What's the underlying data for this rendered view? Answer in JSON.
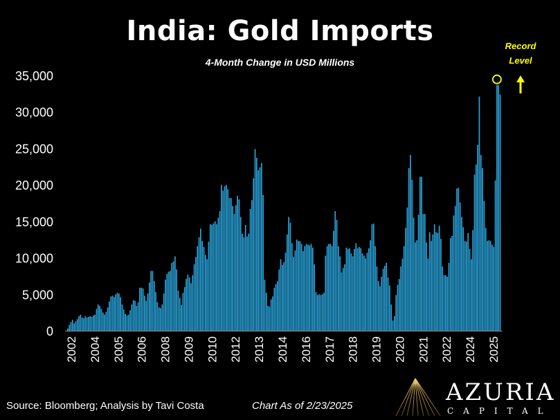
{
  "title": "India: Gold Imports",
  "subtitle": "4-Month Change in USD Millions",
  "annotation": {
    "line1": "Record",
    "line2": "Level",
    "color": "#ffff00"
  },
  "footer": {
    "source": "Source: Bloomberg; Analysis by Tavi Costa",
    "as_of": "Chart As of 2/23/2025"
  },
  "brand": {
    "name": "AZURIA",
    "sub": "CAPITAL",
    "mark_icon": "azuria-mountain-logo"
  },
  "colors": {
    "bar": "#2aa6de",
    "background": "#000000",
    "text": "#ffffff",
    "highlight": "#ffff00"
  },
  "chart_data": {
    "type": "bar",
    "title": "India: Gold Imports",
    "subtitle": "4-Month Change in USD Millions",
    "ylim": [
      0,
      35000
    ],
    "y_ticks": [
      0,
      5000,
      10000,
      15000,
      20000,
      25000,
      30000,
      35000
    ],
    "y_tick_labels": [
      "0",
      "5,000",
      "10,000",
      "15,000",
      "20,000",
      "25,000",
      "30,000",
      "35,000"
    ],
    "x_tick_labels": [
      "2002",
      "2004",
      "2005",
      "2006",
      "2008",
      "2009",
      "2010",
      "2012",
      "2013",
      "2014",
      "2016",
      "2017",
      "2018",
      "2019",
      "2020",
      "2021",
      "2022",
      "2024",
      "2025"
    ],
    "grid": false,
    "legend": "none",
    "values": [
      300,
      800,
      1200,
      1500,
      1000,
      1300,
      1600,
      2000,
      2200,
      1800,
      1700,
      2000,
      1800,
      1900,
      2000,
      1900,
      2100,
      2200,
      3000,
      3600,
      3400,
      3000,
      2500,
      2200,
      2600,
      3200,
      4000,
      4700,
      4800,
      4600,
      5000,
      5200,
      5100,
      4600,
      3600,
      2900,
      2300,
      2100,
      2200,
      2800,
      3600,
      4200,
      4100,
      3400,
      3900,
      5900,
      5900,
      5800,
      4800,
      4100,
      5100,
      6600,
      8200,
      8200,
      6800,
      5300,
      3900,
      3200,
      3100,
      3600,
      5100,
      7000,
      7800,
      8100,
      8200,
      9300,
      9500,
      10200,
      8400,
      5500,
      4500,
      3500,
      5200,
      6000,
      7100,
      7700,
      7300,
      6500,
      7600,
      9100,
      10100,
      11600,
      12800,
      14000,
      12300,
      11500,
      10400,
      9800,
      12200,
      14600,
      14500,
      14700,
      15000,
      14600,
      15500,
      16400,
      20000,
      19200,
      19800,
      20000,
      19400,
      18200,
      18200,
      17100,
      16000,
      17200,
      18500,
      18000,
      15600,
      13300,
      12800,
      14500,
      12900,
      13300,
      16700,
      17900,
      20900,
      24900,
      23700,
      22000,
      22400,
      23000,
      18600,
      7000,
      5200,
      3400,
      3300,
      4300,
      4700,
      5900,
      6400,
      6800,
      8400,
      9800,
      9000,
      9400,
      10700,
      13200,
      15600,
      14800,
      12000,
      10100,
      11000,
      12500,
      12300,
      12300,
      11900,
      10900,
      11600,
      11900,
      11800,
      11700,
      11900,
      11400,
      9100,
      5300,
      4900,
      5000,
      4900,
      5000,
      5200,
      10300,
      11600,
      11900,
      11900,
      11600,
      13700,
      16400,
      15200,
      11600,
      10200,
      8000,
      8600,
      9100,
      11400,
      11200,
      11300,
      10600,
      10200,
      11200,
      12000,
      11300,
      11500,
      11300,
      10600,
      10300,
      9900,
      10700,
      11300,
      12400,
      14600,
      14700,
      11600,
      8800,
      6800,
      6100,
      7400,
      8500,
      8900,
      9300,
      7300,
      6200,
      3600,
      1400,
      2000,
      4900,
      6300,
      7100,
      8800,
      9900,
      11600,
      14100,
      16900,
      22300,
      24100,
      20700,
      15500,
      12100,
      12400,
      15900,
      21100,
      21100,
      16000,
      16000,
      12100,
      9900,
      13500,
      12300,
      13200,
      14600,
      13500,
      13400,
      14400,
      12600,
      8800,
      7600,
      7600,
      7400,
      9300,
      12700,
      13000,
      15800,
      17100,
      19500,
      19600,
      17600,
      15600,
      14200,
      12300,
      12200,
      13400,
      11200,
      9800,
      13800,
      21400,
      22800,
      25500,
      32100,
      24100,
      22300,
      17800,
      14100,
      12300,
      12400,
      12300,
      11800,
      11500,
      20600,
      33700,
      33700,
      32400
    ]
  }
}
